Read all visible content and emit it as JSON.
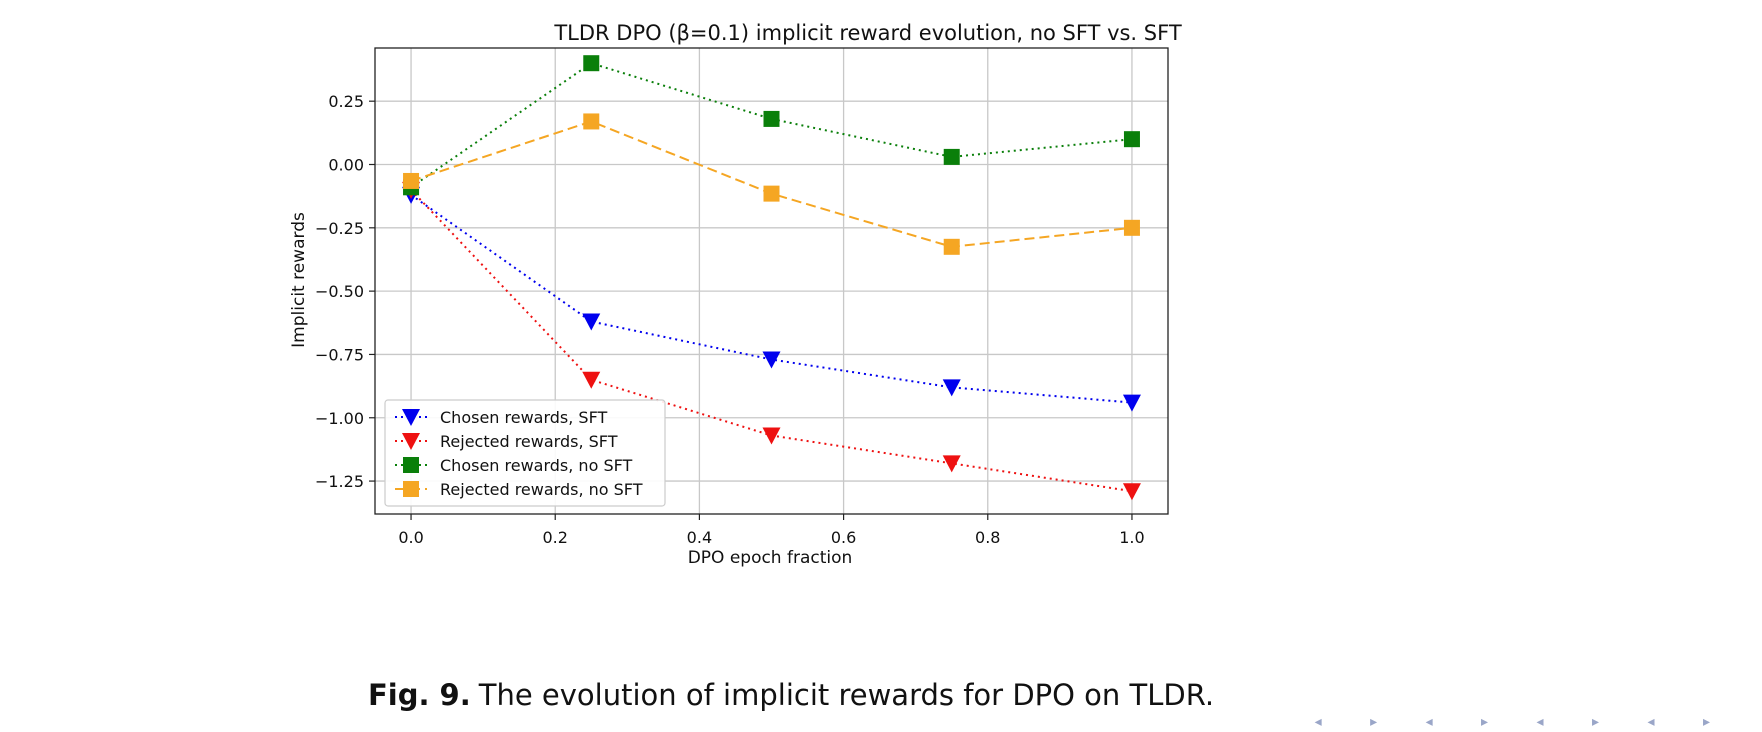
{
  "chart_data": {
    "type": "line",
    "title": "TLDR DPO (β=0.1) implicit reward evolution, no SFT vs. SFT",
    "xlabel": "DPO epoch fraction",
    "ylabel": "Implicit rewards",
    "xlim": [
      -0.05,
      1.05
    ],
    "ylim": [
      -1.38,
      0.46
    ],
    "xticks": [
      0.0,
      0.2,
      0.4,
      0.6,
      0.8,
      1.0
    ],
    "xtick_labels": [
      "0.0",
      "0.2",
      "0.4",
      "0.6",
      "0.8",
      "1.0"
    ],
    "yticks": [
      0.25,
      0.0,
      -0.25,
      -0.5,
      -0.75,
      -1.0,
      -1.25
    ],
    "ytick_labels": [
      "0.25",
      "0.00",
      "−0.25",
      "−0.50",
      "−0.75",
      "−1.00",
      "−1.25"
    ],
    "grid": true,
    "legend_position": "lower-left",
    "x": [
      0.0,
      0.25,
      0.5,
      0.75,
      1.0
    ],
    "series": [
      {
        "name": "Chosen rewards, SFT",
        "values": [
          -0.12,
          -0.62,
          -0.77,
          -0.88,
          -0.94
        ],
        "color": "#0000ee",
        "marker": "triangle-down",
        "linestyle": "dotted"
      },
      {
        "name": "Rejected rewards, SFT",
        "values": [
          -0.1,
          -0.85,
          -1.07,
          -1.18,
          -1.29
        ],
        "color": "#ee1111",
        "marker": "triangle-down",
        "linestyle": "dotted"
      },
      {
        "name": "Chosen rewards, no SFT",
        "values": [
          -0.09,
          0.4,
          0.18,
          0.03,
          0.1
        ],
        "color": "#0a7f0a",
        "marker": "square",
        "linestyle": "dotted"
      },
      {
        "name": "Rejected rewards, no SFT",
        "values": [
          -0.065,
          0.17,
          -0.115,
          -0.325,
          -0.25
        ],
        "color": "#f5a623",
        "marker": "square",
        "linestyle": "dashed"
      }
    ]
  },
  "caption": {
    "label": "Fig. 9.",
    "text": "The evolution of implicit rewards for DPO on TLDR."
  },
  "nav": {
    "glyphs": "◂ ▸ ◂ ▸ ◂ ▸ ◂ ▸"
  }
}
